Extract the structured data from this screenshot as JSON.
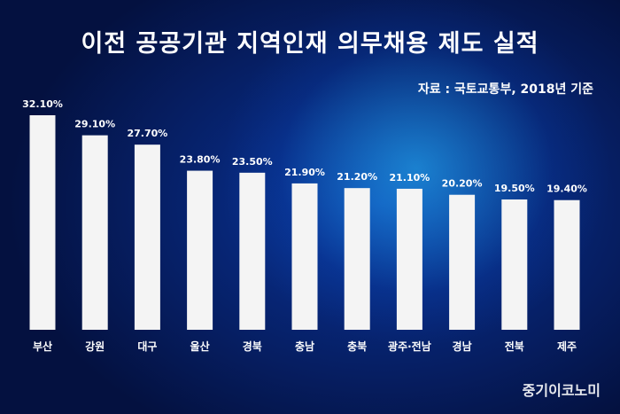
{
  "title": "이전 공공기관 지역인재 의무채용 제도 실적",
  "source": "자료 : 국토교통부, 2018년 기준",
  "brand": "중기이코노미",
  "colors": {
    "background": "#05154a",
    "bar": "#f4f4f4",
    "text": "#ffffff"
  },
  "chart_data": {
    "type": "bar",
    "title": "이전 공공기관 지역인재 의무채용 제도 실적",
    "categories": [
      "부산",
      "강원",
      "대구",
      "울산",
      "경북",
      "충남",
      "충북",
      "광주·전남",
      "경남",
      "전북",
      "제주"
    ],
    "values": [
      32.1,
      29.1,
      27.7,
      23.8,
      23.5,
      21.9,
      21.2,
      21.1,
      20.2,
      19.5,
      19.4
    ],
    "value_labels": [
      "32.10%",
      "29.10%",
      "27.70%",
      "23.80%",
      "23.50%",
      "21.90%",
      "21.20%",
      "21.10%",
      "20.20%",
      "19.50%",
      "19.40%"
    ],
    "xlabel": "",
    "ylabel": "",
    "unit": "%",
    "ylim": [
      0,
      32.1
    ],
    "grid": false,
    "legend": "none"
  }
}
